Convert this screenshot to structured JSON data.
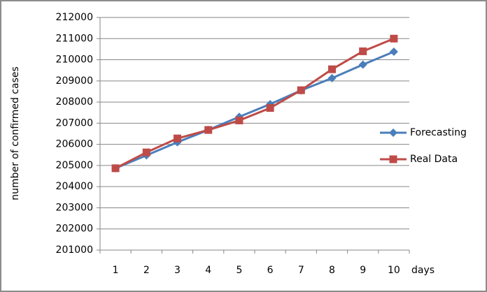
{
  "chart_data": {
    "type": "line",
    "x_label": "days",
    "y_label": "number of confirmed cases",
    "categories": [
      "1",
      "2",
      "3",
      "4",
      "5",
      "6",
      "7",
      "8",
      "9",
      "10"
    ],
    "series": [
      {
        "name": "Forecasting",
        "color": "#4a7ebb",
        "marker": "diamond",
        "values": [
          204870,
          205480,
          206100,
          206680,
          207300,
          207900,
          208550,
          209130,
          209770,
          210380
        ]
      },
      {
        "name": "Real Data",
        "color": "#be4b48",
        "marker": "square",
        "values": [
          204870,
          205620,
          206280,
          206680,
          207130,
          207720,
          208560,
          209550,
          210400,
          211000
        ]
      }
    ],
    "ylim": [
      201000,
      212000
    ],
    "yticks": [
      201000,
      202000,
      203000,
      204000,
      205000,
      206000,
      207000,
      208000,
      209000,
      210000,
      211000,
      212000
    ],
    "grid": true,
    "legend": "right"
  }
}
